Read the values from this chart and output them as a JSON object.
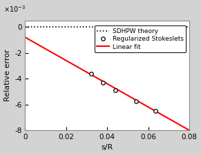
{
  "scatter_x": [
    0.0323,
    0.038,
    0.044,
    0.054,
    0.0635
  ],
  "scatter_y": [
    -0.0036,
    -0.0043,
    -0.0049,
    -0.00575,
    -0.0065
  ],
  "line_x": [
    0.0,
    0.08
  ],
  "line_y": [
    -0.0008,
    -0.008
  ],
  "hline_y": 0.0,
  "xlim": [
    0.0,
    0.08
  ],
  "ylim": [
    -0.008,
    0.0005
  ],
  "xlabel": "s/R",
  "ylabel": "Relative error",
  "yticks": [
    0,
    -0.002,
    -0.004,
    -0.006,
    -0.008
  ],
  "xticks": [
    0,
    0.02,
    0.04,
    0.06,
    0.08
  ],
  "legend_labels": [
    "SDHPW theory",
    "Regularized Stokeslets",
    "Linear fit"
  ],
  "line_color": "red",
  "scatter_color": "black",
  "hline_color": "black",
  "bg_color": "#d3d3d3",
  "plot_bg_color": "#ffffff"
}
